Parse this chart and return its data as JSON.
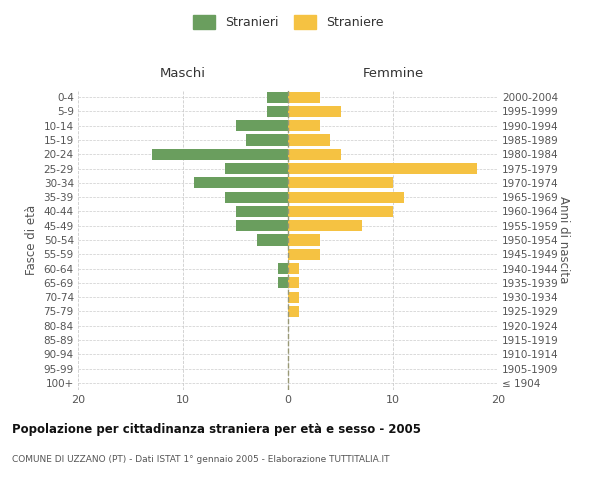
{
  "age_groups": [
    "100+",
    "95-99",
    "90-94",
    "85-89",
    "80-84",
    "75-79",
    "70-74",
    "65-69",
    "60-64",
    "55-59",
    "50-54",
    "45-49",
    "40-44",
    "35-39",
    "30-34",
    "25-29",
    "20-24",
    "15-19",
    "10-14",
    "5-9",
    "0-4"
  ],
  "birth_years": [
    "≤ 1904",
    "1905-1909",
    "1910-1914",
    "1915-1919",
    "1920-1924",
    "1925-1929",
    "1930-1934",
    "1935-1939",
    "1940-1944",
    "1945-1949",
    "1950-1954",
    "1955-1959",
    "1960-1964",
    "1965-1969",
    "1970-1974",
    "1975-1979",
    "1980-1984",
    "1985-1989",
    "1990-1994",
    "1995-1999",
    "2000-2004"
  ],
  "maschi": [
    0,
    0,
    0,
    0,
    0,
    0,
    0,
    1,
    1,
    0,
    3,
    5,
    5,
    6,
    9,
    6,
    13,
    4,
    5,
    2,
    2
  ],
  "femmine": [
    0,
    0,
    0,
    0,
    0,
    1,
    1,
    1,
    1,
    3,
    3,
    7,
    10,
    11,
    10,
    18,
    5,
    4,
    3,
    5,
    3
  ],
  "maschi_color": "#6a9e5e",
  "femmine_color": "#f5c242",
  "legend_stranieri": "Stranieri",
  "legend_straniere": "Straniere",
  "title": "Popolazione per cittadinanza straniera per età e sesso - 2005",
  "subtitle": "COMUNE DI UZZANO (PT) - Dati ISTAT 1° gennaio 2005 - Elaborazione TUTTITALIA.IT",
  "xlabel_left": "Maschi",
  "xlabel_right": "Femmine",
  "ylabel_left": "Fasce di età",
  "ylabel_right": "Anni di nascita",
  "xlim": 20,
  "background_color": "#ffffff",
  "grid_color": "#cccccc",
  "center_line_color": "#999977"
}
